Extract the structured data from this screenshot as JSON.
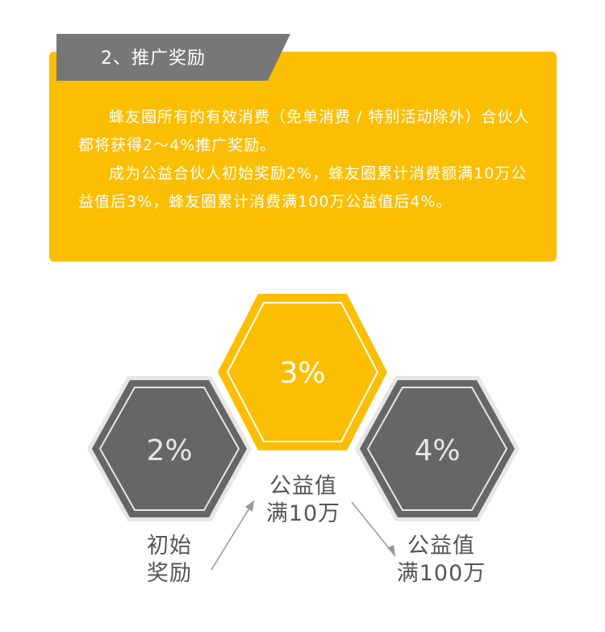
{
  "section": {
    "title": "2、推广奖励",
    "paragraphs": [
      "蜂友圈所有的有效消费（免单消费 / 特别活动除外）合伙人都将获得2～4%推广奖励。",
      "成为公益合伙人初始奖励2%，蜂友圈累计消费额满10万公益值后3%，蜂友圈累计消费满100万公益值后4%。"
    ]
  },
  "tiers": {
    "left": {
      "value": "2%",
      "caption_line1": "初始",
      "caption_line2": "奖励"
    },
    "center": {
      "value": "3%",
      "caption_line1": "公益值",
      "caption_line2": "满10万"
    },
    "right": {
      "value": "4%",
      "caption_line1": "公益值",
      "caption_line2": "满100万"
    }
  },
  "colors": {
    "accent": "#fbbe00",
    "tab": "#777777",
    "hex_dark": "#666666",
    "hex_border": "#e6e6e6",
    "caption": "#555555"
  }
}
